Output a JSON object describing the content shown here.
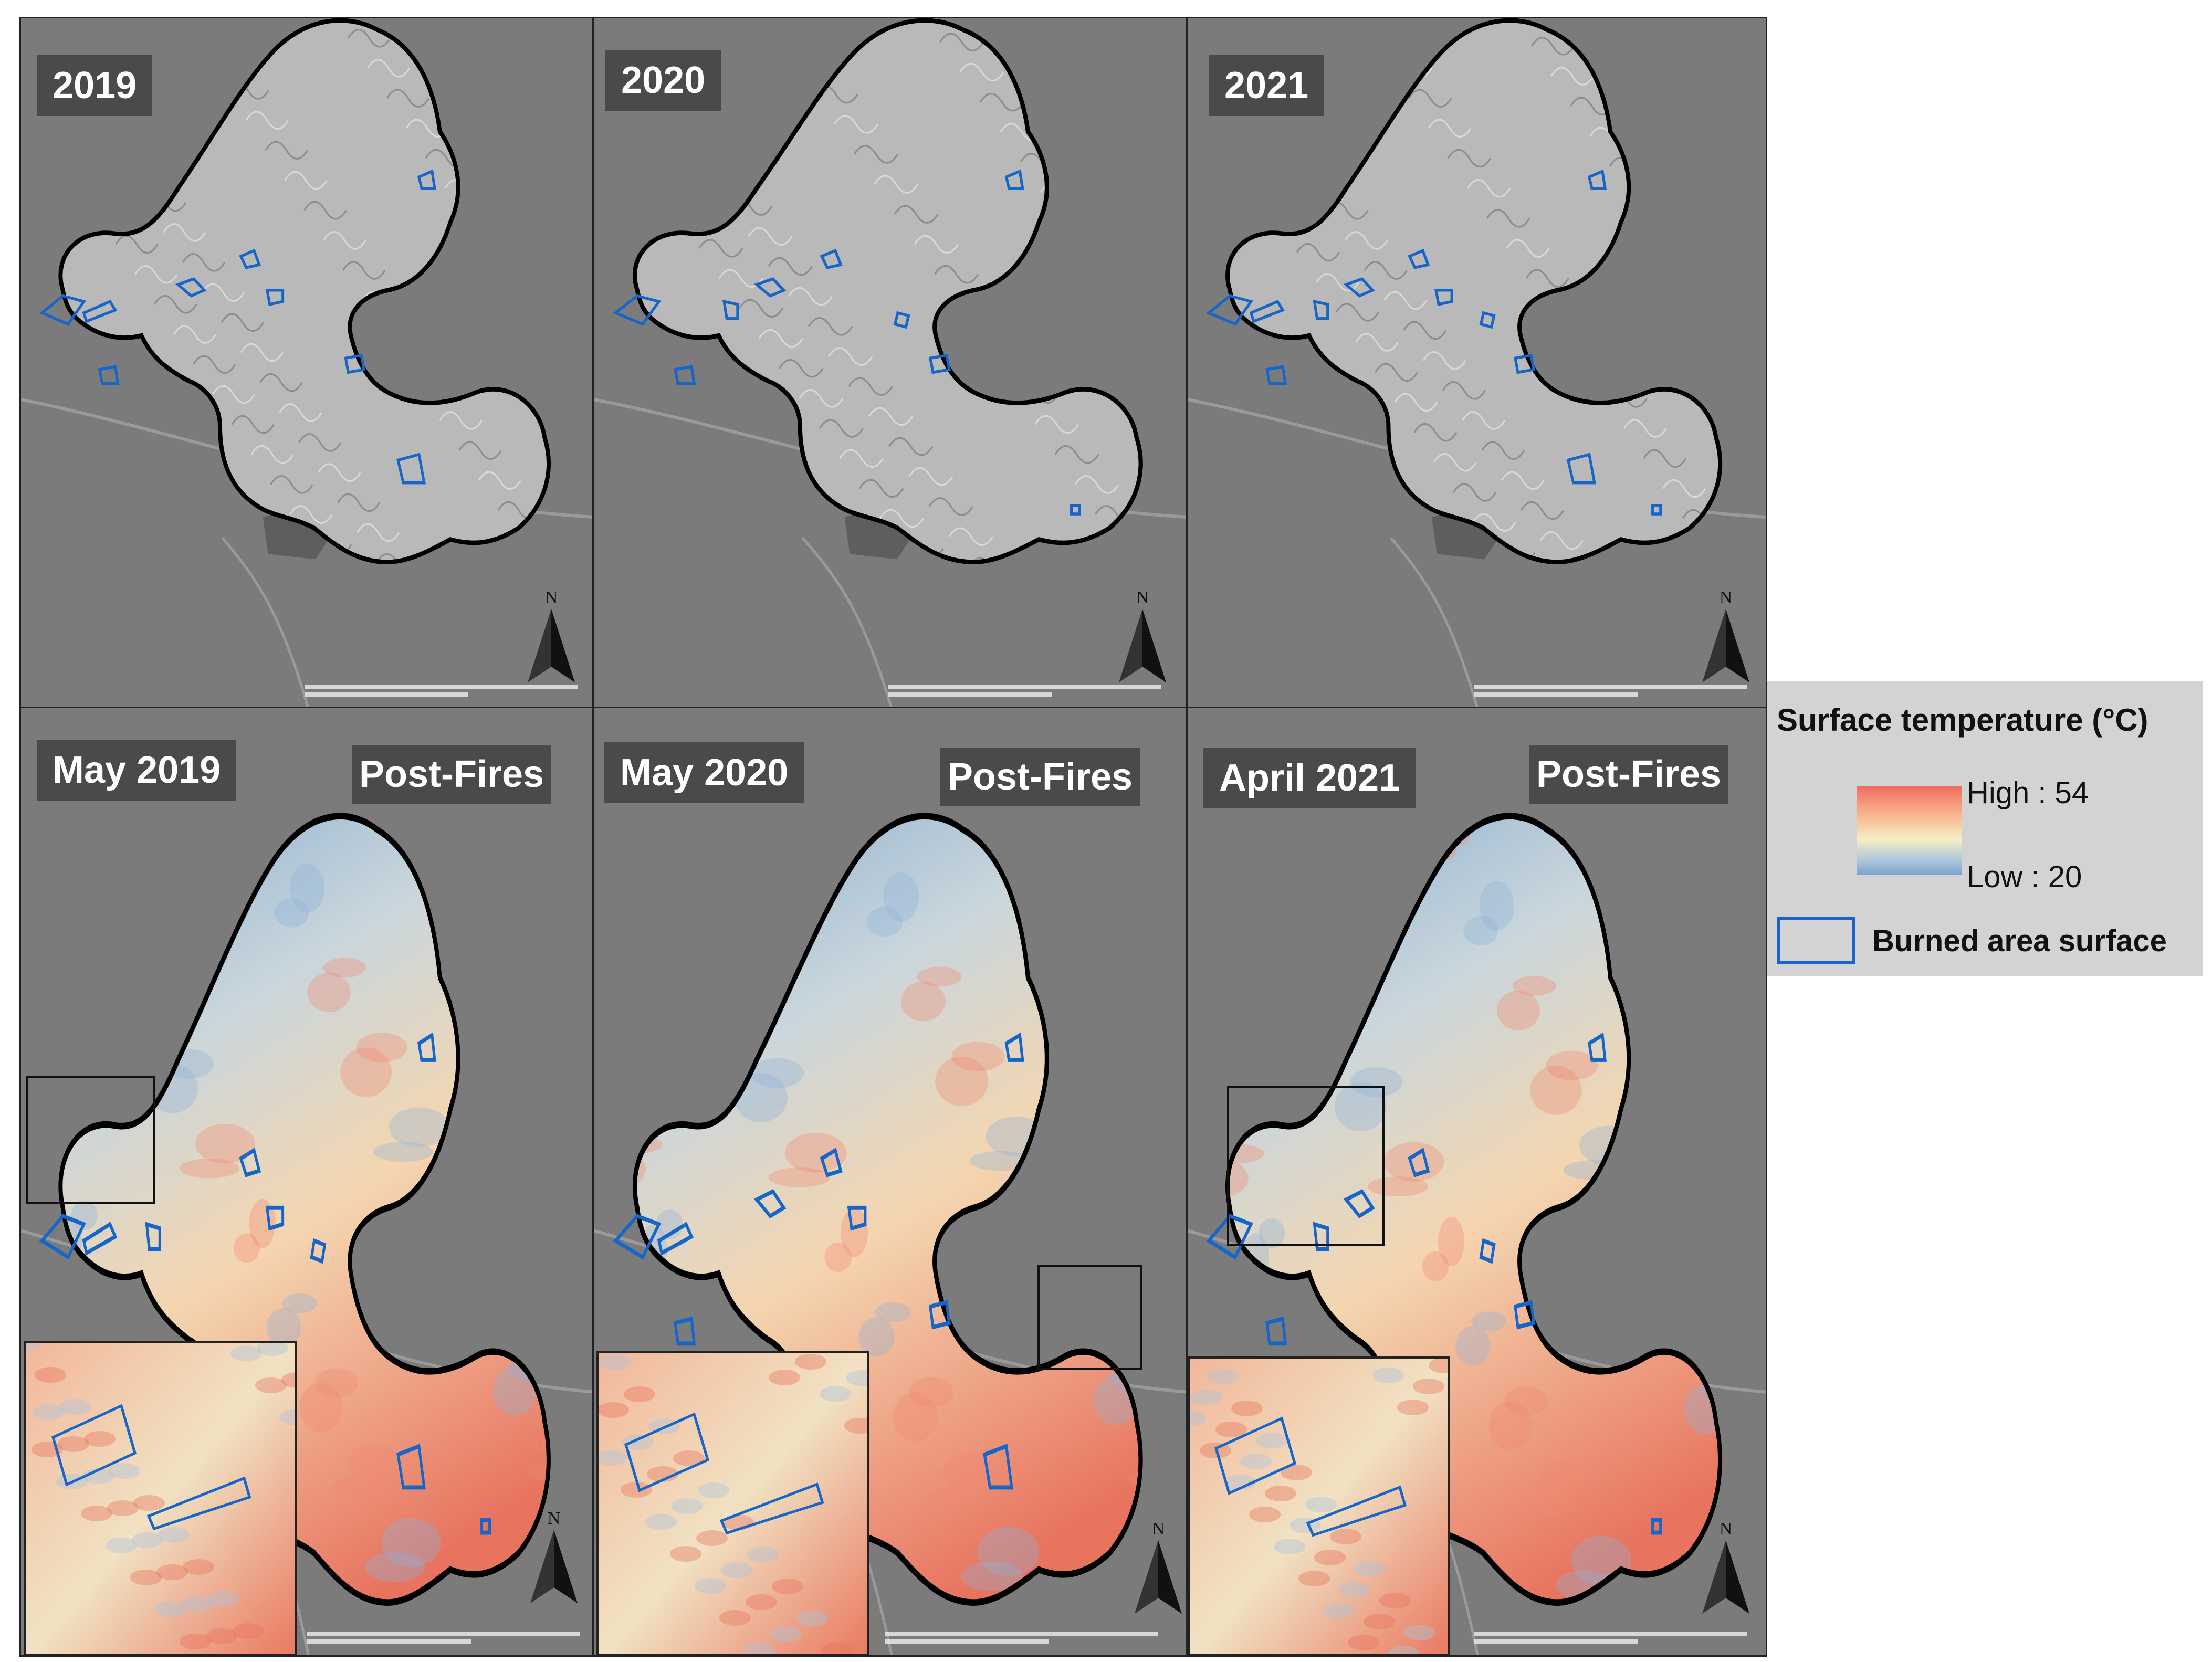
{
  "panels": [
    {
      "label": "2019"
    },
    {
      "label": "2020"
    },
    {
      "label": "2021"
    },
    {
      "label": "May 2019",
      "badge": "Post-Fires"
    },
    {
      "label": "May 2020",
      "badge": "Post-Fires"
    },
    {
      "label": "April 2021",
      "badge": "Post-Fires"
    }
  ],
  "north_symbol": "N",
  "icons": [
    "north-arrow-icon"
  ],
  "legend": {
    "title": "Surface temperature (°C)",
    "high": "High : 54",
    "low": "Low : 20",
    "burned": "Burned area surface",
    "colors": {
      "high": "#f06a5e",
      "mid": "#f4efc4",
      "low": "#7ba3cc",
      "burned_outline": "#1566c8"
    }
  }
}
